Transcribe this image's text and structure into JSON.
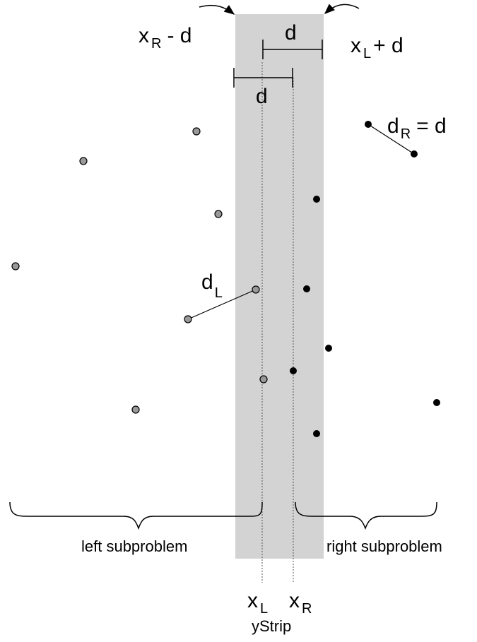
{
  "labels": {
    "xr_minus_d": {
      "main": "x",
      "sub": "R",
      "rest": "- d"
    },
    "xl_plus_d": {
      "main": "x",
      "sub": "L",
      "rest": "+ d"
    },
    "d_top": "d",
    "d_bottom": "d",
    "dr_eq_d": {
      "main": "d",
      "sub": "R",
      "rest": "= d"
    },
    "dl": {
      "main": "d",
      "sub": "L"
    },
    "left_subproblem": "left subproblem",
    "right_subproblem": "right subproblem",
    "xl_axis": {
      "main": "x",
      "sub": "L"
    },
    "xr_axis": {
      "main": "x",
      "sub": "R"
    },
    "ystrip": "yStrip"
  },
  "colors": {
    "strip": "#d3d3d3",
    "left_point": "#999999",
    "right_point": "#000000",
    "line": "#000000"
  }
}
